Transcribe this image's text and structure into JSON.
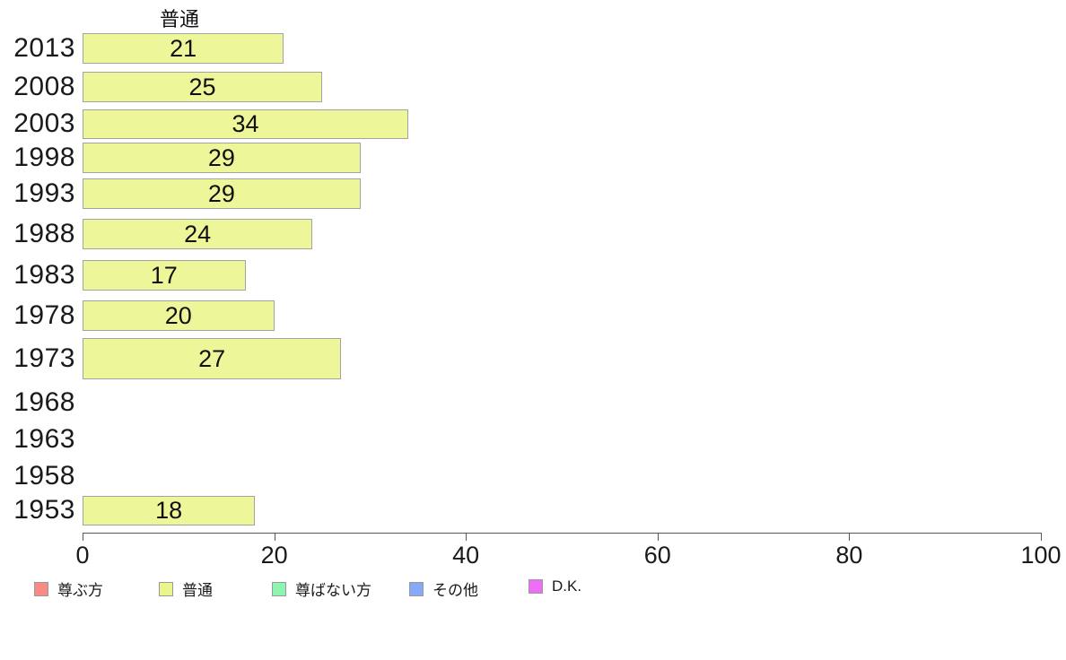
{
  "chart_data": {
    "type": "bar",
    "orientation": "horizontal",
    "title": "普通",
    "categories": [
      "2013",
      "2008",
      "2003",
      "1998",
      "1993",
      "1988",
      "1983",
      "1978",
      "1973",
      "1968",
      "1963",
      "1958",
      "1953"
    ],
    "values": [
      21,
      25,
      34,
      29,
      29,
      24,
      17,
      20,
      27,
      null,
      null,
      null,
      18
    ],
    "xlabel": "",
    "ylabel": "",
    "xlim": [
      0,
      100
    ],
    "x_ticks": [
      0,
      20,
      40,
      60,
      80,
      100
    ],
    "grid": false,
    "bar_color": "#edf79a",
    "bar_border_color": "#a3a3a3",
    "legend_position": "bottom",
    "legend": [
      {
        "label": "尊ぶ方",
        "color": "#fa8a84"
      },
      {
        "label": "普通",
        "color": "#e9f68d"
      },
      {
        "label": "尊ばない方",
        "color": "#8ef5b0"
      },
      {
        "label": "その他",
        "color": "#86aaf7"
      },
      {
        "label": "D.K.",
        "color": "#ee6ef8"
      }
    ]
  }
}
